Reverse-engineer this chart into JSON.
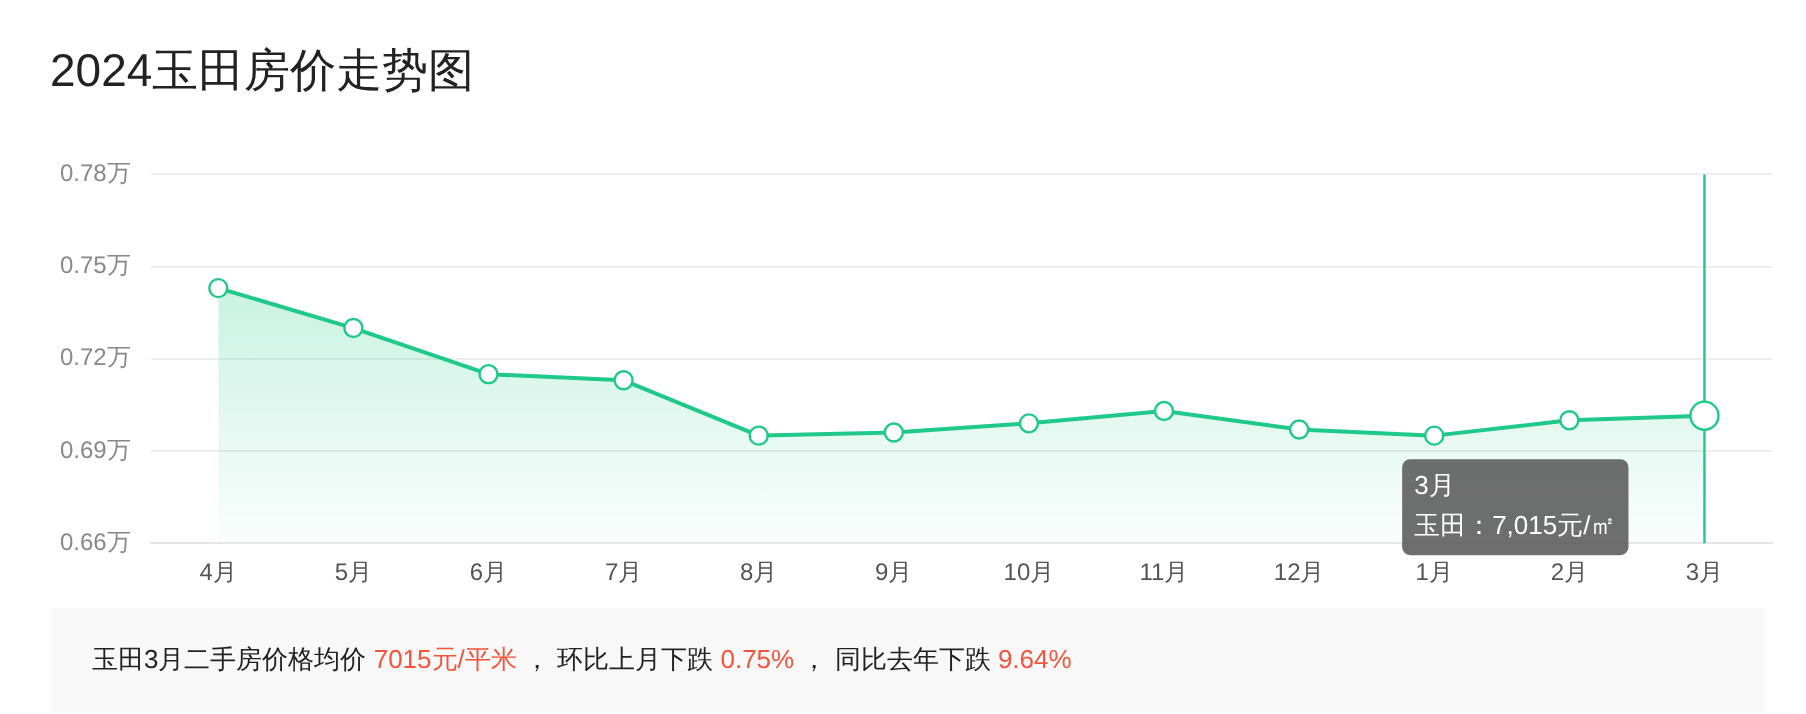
{
  "chart_data": {
    "type": "area",
    "title": "2024玉田房价走势图",
    "categories": [
      "4月",
      "5月",
      "6月",
      "7月",
      "8月",
      "9月",
      "10月",
      "11月",
      "12月",
      "1月",
      "2月",
      "3月"
    ],
    "series": [
      {
        "color": "#1ec98a",
        "values": [
          0.743,
          0.73,
          0.715,
          0.713,
          0.695,
          0.696,
          0.699,
          0.703,
          0.697,
          0.695,
          0.7,
          0.7015
        ]
      }
    ],
    "ylim": [
      0.66,
      0.78
    ],
    "yticks": [
      {
        "value": 0.66,
        "label": "0.66万"
      },
      {
        "value": 0.69,
        "label": "0.69万"
      },
      {
        "value": 0.72,
        "label": "0.72万"
      },
      {
        "value": 0.75,
        "label": "0.75万"
      },
      {
        "value": 0.78,
        "label": "0.78万"
      }
    ],
    "grid": "y",
    "legend": false,
    "marker": "circle",
    "line_style": "solid",
    "ref_lines": [
      {
        "axis": "x",
        "value": "3月",
        "color": "#1ec98a"
      }
    ],
    "annotations": [
      "3月",
      "玉田：7,015元/㎡",
      "玉田3月二手房价格均价 ",
      "7015元/平米",
      " ， 环比上月下跌 ",
      "0.75%",
      " ， 同比去年下跌 ",
      "9.64%"
    ]
  }
}
